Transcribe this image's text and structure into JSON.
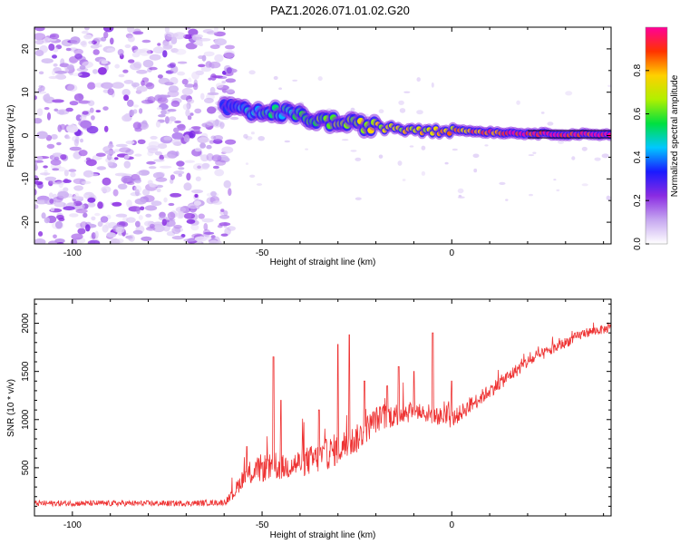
{
  "figure_title": "PAZ1.2026.071.01.02.G20",
  "colors": {
    "frame": "#000000",
    "snr_line": "#ee3333",
    "ridge": "#000000"
  },
  "chart_data": [
    {
      "type": "heatmap",
      "panel": "spectrogram",
      "xlabel": "Height of straight line (km)",
      "ylabel": "Frequency (Hz)",
      "xlim": [
        -110,
        42
      ],
      "ylim": [
        -25,
        25
      ],
      "x_ticks": [
        -100,
        -50,
        0
      ],
      "y_ticks": [
        -20,
        -10,
        0,
        10,
        20
      ],
      "colorbar": {
        "label": "Normalized spectral amplitude",
        "range": [
          0.0,
          1.0
        ],
        "ticks": [
          "0.0",
          "0.2",
          "0.4",
          "0.6",
          "0.8"
        ],
        "colors": [
          "#ffffff",
          "#c6a7f0",
          "#8a2be2",
          "#1a1aff",
          "#00c8ff",
          "#00e040",
          "#b0f000",
          "#ffd000",
          "#ff3300",
          "#ff0099"
        ]
      },
      "noise_region": {
        "x_range": [
          -110,
          -58
        ],
        "amplitude": [
          0.0,
          0.2
        ]
      },
      "ridge": {
        "height_km": [
          -60,
          -55,
          -50,
          -45,
          -40,
          -35,
          -30,
          -25,
          -20,
          -15,
          -10,
          -5,
          0,
          5,
          10,
          15,
          20,
          25,
          30,
          35,
          42
        ],
        "frequency_hz": [
          6.5,
          5.5,
          5.0,
          5.5,
          4.5,
          3.5,
          3.0,
          2.5,
          2.0,
          2.0,
          1.5,
          1.5,
          1.5,
          1.0,
          0.8,
          0.6,
          0.5,
          0.4,
          0.3,
          0.3,
          0.3
        ],
        "amplitude": [
          0.35,
          0.45,
          0.5,
          0.5,
          0.55,
          0.6,
          0.65,
          0.7,
          0.72,
          0.72,
          0.75,
          0.75,
          0.78,
          0.85,
          0.9,
          0.95,
          1.0,
          1.0,
          1.0,
          1.0,
          1.0
        ]
      }
    },
    {
      "type": "line",
      "panel": "snr",
      "xlabel": "Height of straight line (km)",
      "ylabel": "SNR (10 * v/v)",
      "xlim": [
        -110,
        42
      ],
      "ylim": [
        0,
        2250
      ],
      "x_ticks": [
        -100,
        -50,
        0
      ],
      "y_ticks": [
        500,
        1000,
        1500,
        2000
      ],
      "series": [
        {
          "name": "SNR",
          "x": [
            -110,
            -100,
            -90,
            -80,
            -70,
            -60,
            -58,
            -55,
            -50,
            -45,
            -40,
            -35,
            -30,
            -25,
            -20,
            -15,
            -10,
            -5,
            0,
            5,
            10,
            15,
            20,
            25,
            30,
            35,
            42
          ],
          "y": [
            130,
            130,
            130,
            130,
            130,
            140,
            200,
            400,
            500,
            500,
            550,
            600,
            700,
            800,
            1000,
            1050,
            1100,
            1050,
            1000,
            1150,
            1300,
            1450,
            1600,
            1700,
            1800,
            1900,
            1950
          ],
          "fluctuation": [
            60,
            60,
            60,
            60,
            60,
            60,
            120,
            200,
            300,
            260,
            300,
            320,
            350,
            300,
            280,
            250,
            230,
            200,
            180,
            160,
            150,
            140,
            130,
            120,
            110,
            100,
            90
          ],
          "peaks": [
            {
              "x": -54,
              "y": 720
            },
            {
              "x": -47,
              "y": 1650
            },
            {
              "x": -45,
              "y": 1200
            },
            {
              "x": -35,
              "y": 1100
            },
            {
              "x": -30,
              "y": 1780
            },
            {
              "x": -27,
              "y": 1880
            },
            {
              "x": -23,
              "y": 1400
            },
            {
              "x": -17,
              "y": 1350
            },
            {
              "x": -14,
              "y": 1550
            },
            {
              "x": -10,
              "y": 1500
            },
            {
              "x": -5,
              "y": 1900
            },
            {
              "x": 0,
              "y": 1400
            }
          ]
        }
      ]
    }
  ]
}
